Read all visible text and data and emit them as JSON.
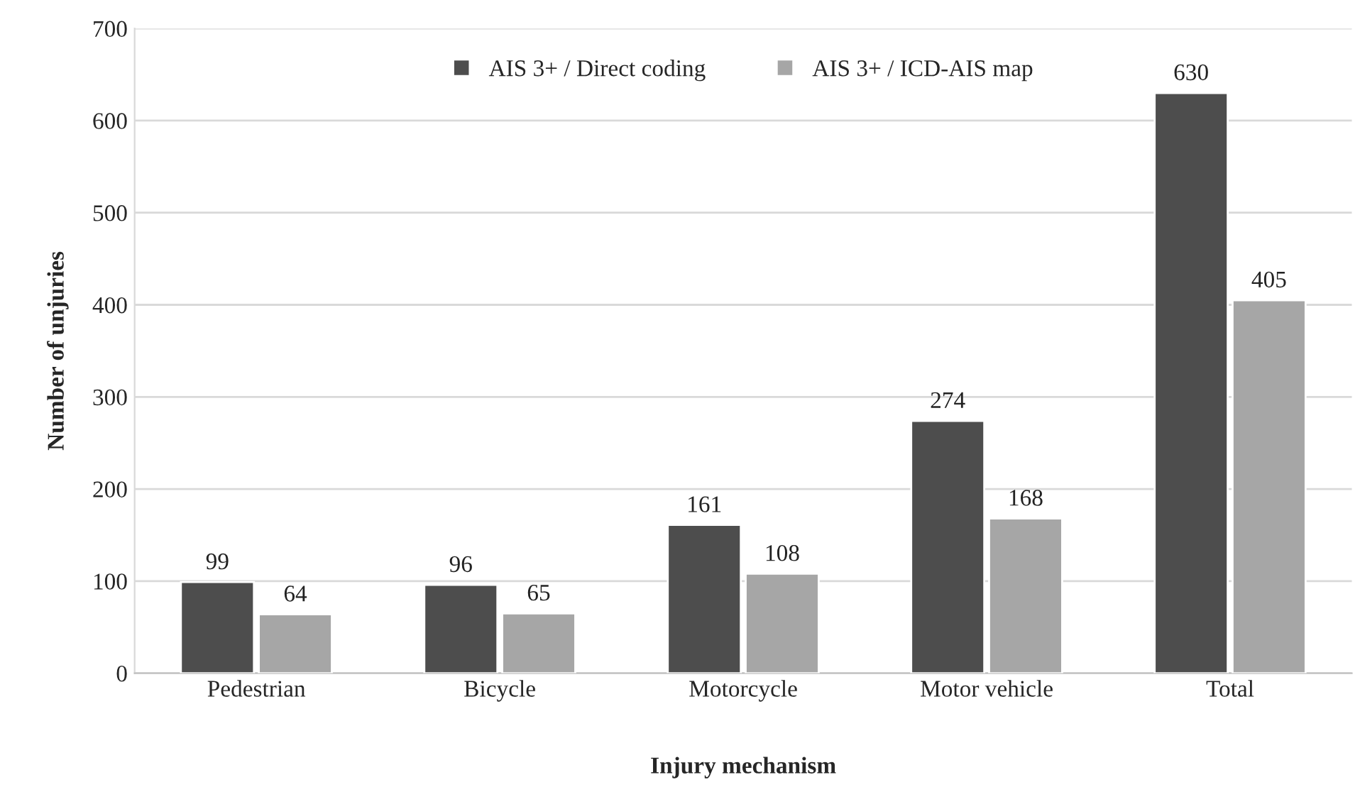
{
  "chart_data": {
    "type": "bar",
    "xlabel": "Injury mechanism",
    "ylabel": "Number of unjuries",
    "categories": [
      "Pedestrian",
      "Bicycle",
      "Motorcycle",
      "Motor vehicle",
      "Total"
    ],
    "series": [
      {
        "name": "AIS 3+ / Direct coding",
        "color": "#4d4d4d",
        "values": [
          99,
          96,
          161,
          274,
          630
        ]
      },
      {
        "name": "AIS 3+ / ICD-AIS map",
        "color": "#a6a6a6",
        "values": [
          64,
          65,
          108,
          168,
          405
        ]
      }
    ],
    "ylim": [
      0,
      700
    ],
    "yticks": [
      0,
      100,
      200,
      300,
      400,
      500,
      600,
      700
    ],
    "grid": "y",
    "legend": "top",
    "data_labels": true
  }
}
